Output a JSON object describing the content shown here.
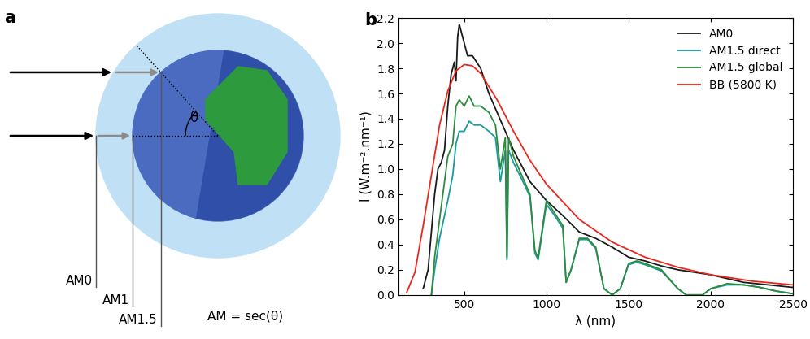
{
  "diagram": {
    "label": "a",
    "path_labels": [
      "AM0",
      "AM1",
      "AM1.5"
    ],
    "formula": "AM = sec(θ)",
    "angle": "θ"
  },
  "chart_data": {
    "type": "line",
    "title": "b",
    "x_label": "λ (nm)",
    "y_label": "I (W.m⁻².nm⁻¹)",
    "xlim": [
      100,
      2500
    ],
    "xticks": [
      500,
      1000,
      1500,
      2000,
      2500
    ],
    "ylim": [
      0,
      2.2
    ],
    "yticks": [
      {
        "value": 0,
        "label": "0.0"
      },
      {
        "value": 0.2,
        "label": "0.2"
      },
      {
        "value": 0.4,
        "label": "0.4"
      },
      {
        "value": 0.6,
        "label": "0.6"
      },
      {
        "value": 0.8,
        "label": "0.8"
      },
      {
        "value": 1.0,
        "label": "1.0"
      },
      {
        "value": 1.2,
        "label": "1.2"
      },
      {
        "value": 1.4,
        "label": "1.4"
      },
      {
        "value": 1.6,
        "label": "1.6"
      },
      {
        "value": 1.8,
        "label": "1.8"
      },
      {
        "value": 2.0,
        "label": "2.0"
      },
      {
        "value": 2.2,
        "label": "2.2"
      }
    ],
    "legend": "upper right",
    "series": [
      {
        "name": "AM0",
        "color": "#1a1a1a",
        "x": [
          250,
          280,
          300,
          320,
          340,
          360,
          380,
          400,
          420,
          440,
          450,
          460,
          470,
          480,
          500,
          520,
          550,
          600,
          650,
          700,
          750,
          800,
          900,
          1000,
          1100,
          1200,
          1300,
          1400,
          1500,
          1600,
          1700,
          1800,
          2000,
          2200,
          2500
        ],
        "values": [
          0.05,
          0.2,
          0.5,
          0.8,
          1.0,
          1.05,
          1.15,
          1.5,
          1.75,
          1.85,
          1.7,
          2.05,
          2.15,
          2.1,
          2.0,
          1.9,
          1.9,
          1.8,
          1.6,
          1.45,
          1.3,
          1.15,
          0.9,
          0.75,
          0.63,
          0.5,
          0.45,
          0.38,
          0.3,
          0.27,
          0.23,
          0.2,
          0.16,
          0.1,
          0.06
        ]
      },
      {
        "name": "AM1.5 direct",
        "color": "#1a9a9a",
        "x": [
          300,
          320,
          350,
          400,
          430,
          450,
          470,
          500,
          530,
          560,
          600,
          650,
          690,
          720,
          750,
          760,
          770,
          800,
          850,
          900,
          930,
          950,
          1000,
          1050,
          1100,
          1120,
          1150,
          1200,
          1250,
          1300,
          1350,
          1400,
          1450,
          1500,
          1550,
          1600,
          1700,
          1800,
          1850,
          1950,
          2000,
          2100,
          2200,
          2300,
          2400,
          2500
        ],
        "values": [
          0.0,
          0.2,
          0.45,
          0.75,
          0.95,
          1.2,
          1.3,
          1.3,
          1.38,
          1.35,
          1.35,
          1.3,
          1.25,
          0.9,
          1.15,
          0.28,
          1.15,
          1.05,
          0.92,
          0.78,
          0.33,
          0.28,
          0.72,
          0.63,
          0.53,
          0.1,
          0.2,
          0.44,
          0.44,
          0.37,
          0.05,
          0.0,
          0.05,
          0.24,
          0.26,
          0.24,
          0.19,
          0.05,
          0.0,
          0.0,
          0.05,
          0.08,
          0.08,
          0.06,
          0.03,
          0.01
        ]
      },
      {
        "name": "AM1.5 global",
        "color": "#2e8b3e",
        "x": [
          300,
          320,
          350,
          400,
          430,
          450,
          470,
          500,
          530,
          560,
          600,
          650,
          690,
          720,
          750,
          760,
          770,
          800,
          850,
          900,
          930,
          950,
          1000,
          1050,
          1100,
          1120,
          1150,
          1200,
          1250,
          1300,
          1350,
          1400,
          1450,
          1500,
          1550,
          1600,
          1700,
          1800,
          1850,
          1950,
          2000,
          2100,
          2200,
          2300,
          2400,
          2500
        ],
        "values": [
          0.0,
          0.3,
          0.6,
          1.1,
          1.2,
          1.5,
          1.55,
          1.5,
          1.58,
          1.5,
          1.5,
          1.45,
          1.35,
          1.0,
          1.25,
          0.3,
          1.25,
          1.1,
          0.95,
          0.8,
          0.35,
          0.3,
          0.75,
          0.65,
          0.55,
          0.1,
          0.2,
          0.45,
          0.45,
          0.38,
          0.05,
          0.0,
          0.05,
          0.25,
          0.27,
          0.25,
          0.2,
          0.05,
          0.0,
          0.0,
          0.05,
          0.09,
          0.08,
          0.06,
          0.03,
          0.01
        ]
      },
      {
        "name": "BB (5800 K)",
        "color": "#e8281e",
        "x": [
          150,
          200,
          250,
          300,
          350,
          400,
          450,
          500,
          550,
          600,
          700,
          800,
          900,
          1000,
          1200,
          1400,
          1600,
          1800,
          2000,
          2250,
          2500
        ],
        "values": [
          0.02,
          0.18,
          0.55,
          0.95,
          1.35,
          1.62,
          1.78,
          1.83,
          1.82,
          1.76,
          1.55,
          1.3,
          1.07,
          0.88,
          0.6,
          0.42,
          0.3,
          0.22,
          0.16,
          0.11,
          0.08
        ]
      }
    ]
  }
}
